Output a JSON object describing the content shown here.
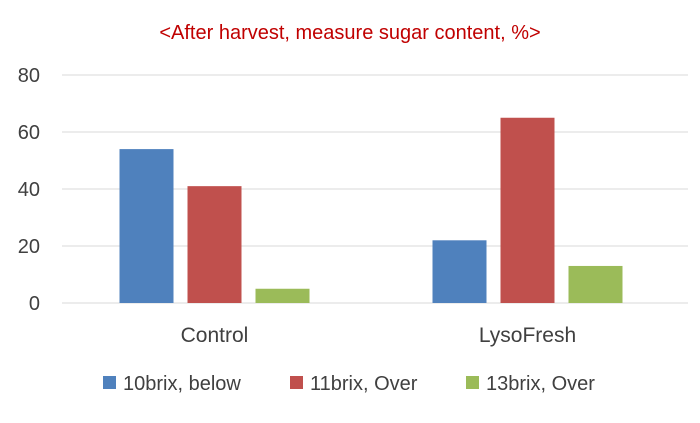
{
  "colors": {
    "title": "#c00000",
    "gridline": "#d9d9d9",
    "text": "#404040",
    "series": [
      "#4f81bd",
      "#c0504d",
      "#9bbb59"
    ]
  },
  "chart_data": {
    "type": "bar",
    "title": "<After harvest, measure sugar content,  %>",
    "xlabel": "",
    "ylabel": "",
    "categories": [
      "Control",
      "LysoFresh"
    ],
    "series": [
      {
        "name": "10brix, below",
        "values": [
          54,
          22
        ]
      },
      {
        "name": "11brix, Over",
        "values": [
          41,
          65
        ]
      },
      {
        "name": "13brix, Over",
        "values": [
          5,
          13
        ]
      }
    ],
    "ylim": [
      0,
      80
    ],
    "yticks": [
      0,
      20,
      40,
      60,
      80
    ],
    "grid": true,
    "legend": "bottom"
  }
}
